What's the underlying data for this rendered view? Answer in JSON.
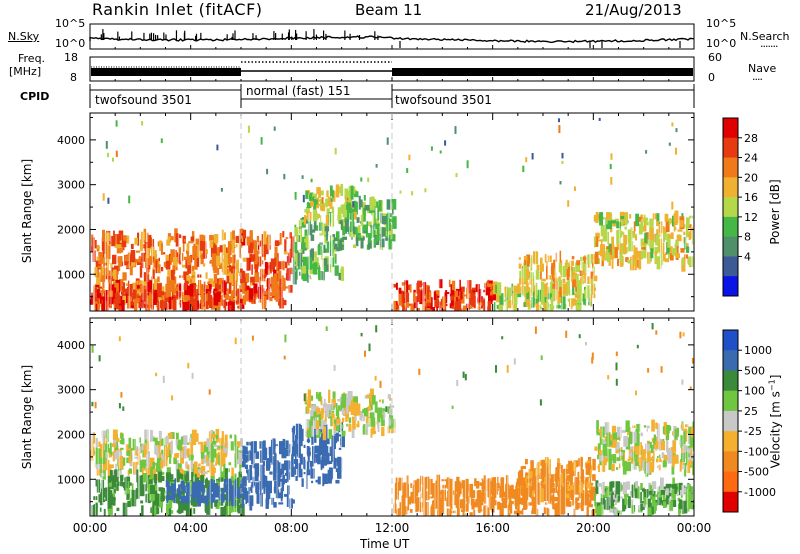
{
  "header": {
    "station": "Rankin Inlet (fitACF)",
    "beam": "Beam 11",
    "date": "21/Aug/2013"
  },
  "strips": {
    "noise_left_label": "N.Sky",
    "noise_right_label": "N.Search",
    "noise_ticks": [
      "10^5",
      "10^0"
    ],
    "freq_label_1": "Freq.",
    "freq_label_2": "[MHz]",
    "freq_ticks": [
      "18",
      "8"
    ],
    "nave_label": "Nave",
    "nave_ticks": [
      "60",
      "0"
    ],
    "cpid_label": "CPID",
    "cpid_segments": [
      {
        "start": 0,
        "end": 6,
        "label": "twofsound 3501"
      },
      {
        "start": 6,
        "end": 12,
        "label": "normal (fast) 151"
      },
      {
        "start": 12,
        "end": 24,
        "label": "twofsound 3501"
      }
    ]
  },
  "colors": {
    "power": [
      "#0a14e6",
      "#3c5a96",
      "#4f8f6a",
      "#45b745",
      "#b5d84a",
      "#f0b030",
      "#f07a1a",
      "#e83a10",
      "#e00000"
    ],
    "velocity": [
      "#e00000",
      "#ff6a10",
      "#f08a20",
      "#f5b030",
      "#c8c8c8",
      "#6fc640",
      "#3a8a3a",
      "#3a6ab0",
      "#2050c8"
    ]
  },
  "chart_data": [
    {
      "type": "heatmap",
      "name": "power",
      "xlabel": "Time UT",
      "ylabel": "Slant Range [km]",
      "colorbar_label": "Power [dB]",
      "colorbar_ticks": [
        "28",
        "24",
        "20",
        "16",
        "12",
        "8",
        "4"
      ],
      "xlim": [
        0,
        24
      ],
      "ylim": [
        180,
        4600
      ],
      "xticks": [
        "00:00",
        "04:00",
        "08:00",
        "12:00",
        "16:00",
        "20:00",
        "00:00"
      ],
      "yticks": [
        "1000",
        "2000",
        "3000",
        "4000"
      ],
      "x_units": "hours UT",
      "regions": [
        {
          "t": [
            0,
            6
          ],
          "r": [
            250,
            1900
          ],
          "power": 24
        },
        {
          "t": [
            0,
            6
          ],
          "r": [
            250,
            750
          ],
          "power": 28
        },
        {
          "t": [
            6,
            8
          ],
          "r": [
            350,
            1900
          ],
          "power": 26
        },
        {
          "t": [
            8,
            10
          ],
          "r": [
            900,
            2200
          ],
          "power": 12
        },
        {
          "t": [
            8.5,
            10.5
          ],
          "r": [
            2200,
            2900
          ],
          "power": 16
        },
        {
          "t": [
            10,
            12
          ],
          "r": [
            1600,
            2600
          ],
          "power": 12
        },
        {
          "t": [
            12,
            16
          ],
          "r": [
            200,
            800
          ],
          "power": 28
        },
        {
          "t": [
            16,
            20
          ],
          "r": [
            200,
            700
          ],
          "power": 16
        },
        {
          "t": [
            17,
            20
          ],
          "r": [
            600,
            1400
          ],
          "power": 20
        },
        {
          "t": [
            20,
            24
          ],
          "r": [
            1200,
            2300
          ],
          "power": 18
        }
      ]
    },
    {
      "type": "heatmap",
      "name": "velocity",
      "xlabel": "Time UT",
      "ylabel": "Slant Range [km]",
      "colorbar_label": "Velocity [m s^-1]",
      "colorbar_ticks": [
        "1000",
        "500",
        "100",
        "25",
        "-25",
        "-100",
        "-500",
        "-1000"
      ],
      "xlim": [
        0,
        24
      ],
      "ylim": [
        180,
        4600
      ],
      "xticks": [
        "00:00",
        "04:00",
        "08:00",
        "12:00",
        "16:00",
        "20:00",
        "00:00"
      ],
      "yticks": [
        "1000",
        "2000",
        "3000",
        "4000"
      ],
      "x_units": "hours UT",
      "regions": [
        {
          "t": [
            0,
            6
          ],
          "r": [
            1100,
            2000
          ],
          "velocity": 0
        },
        {
          "t": [
            0,
            6
          ],
          "r": [
            250,
            1100
          ],
          "velocity": 150
        },
        {
          "t": [
            3,
            6
          ],
          "r": [
            500,
            900
          ],
          "velocity": 700
        },
        {
          "t": [
            6,
            8
          ],
          "r": [
            400,
            1800
          ],
          "velocity": 700
        },
        {
          "t": [
            8,
            10
          ],
          "r": [
            900,
            2200
          ],
          "velocity": 600
        },
        {
          "t": [
            8.5,
            12
          ],
          "r": [
            2000,
            2900
          ],
          "velocity": 0
        },
        {
          "t": [
            12,
            20
          ],
          "r": [
            200,
            1000
          ],
          "velocity": -200
        },
        {
          "t": [
            17,
            20
          ],
          "r": [
            600,
            1400
          ],
          "velocity": -150
        },
        {
          "t": [
            20,
            24
          ],
          "r": [
            1200,
            2200
          ],
          "velocity": 0
        },
        {
          "t": [
            20,
            24
          ],
          "r": [
            250,
            900
          ],
          "velocity": 80
        }
      ]
    }
  ]
}
